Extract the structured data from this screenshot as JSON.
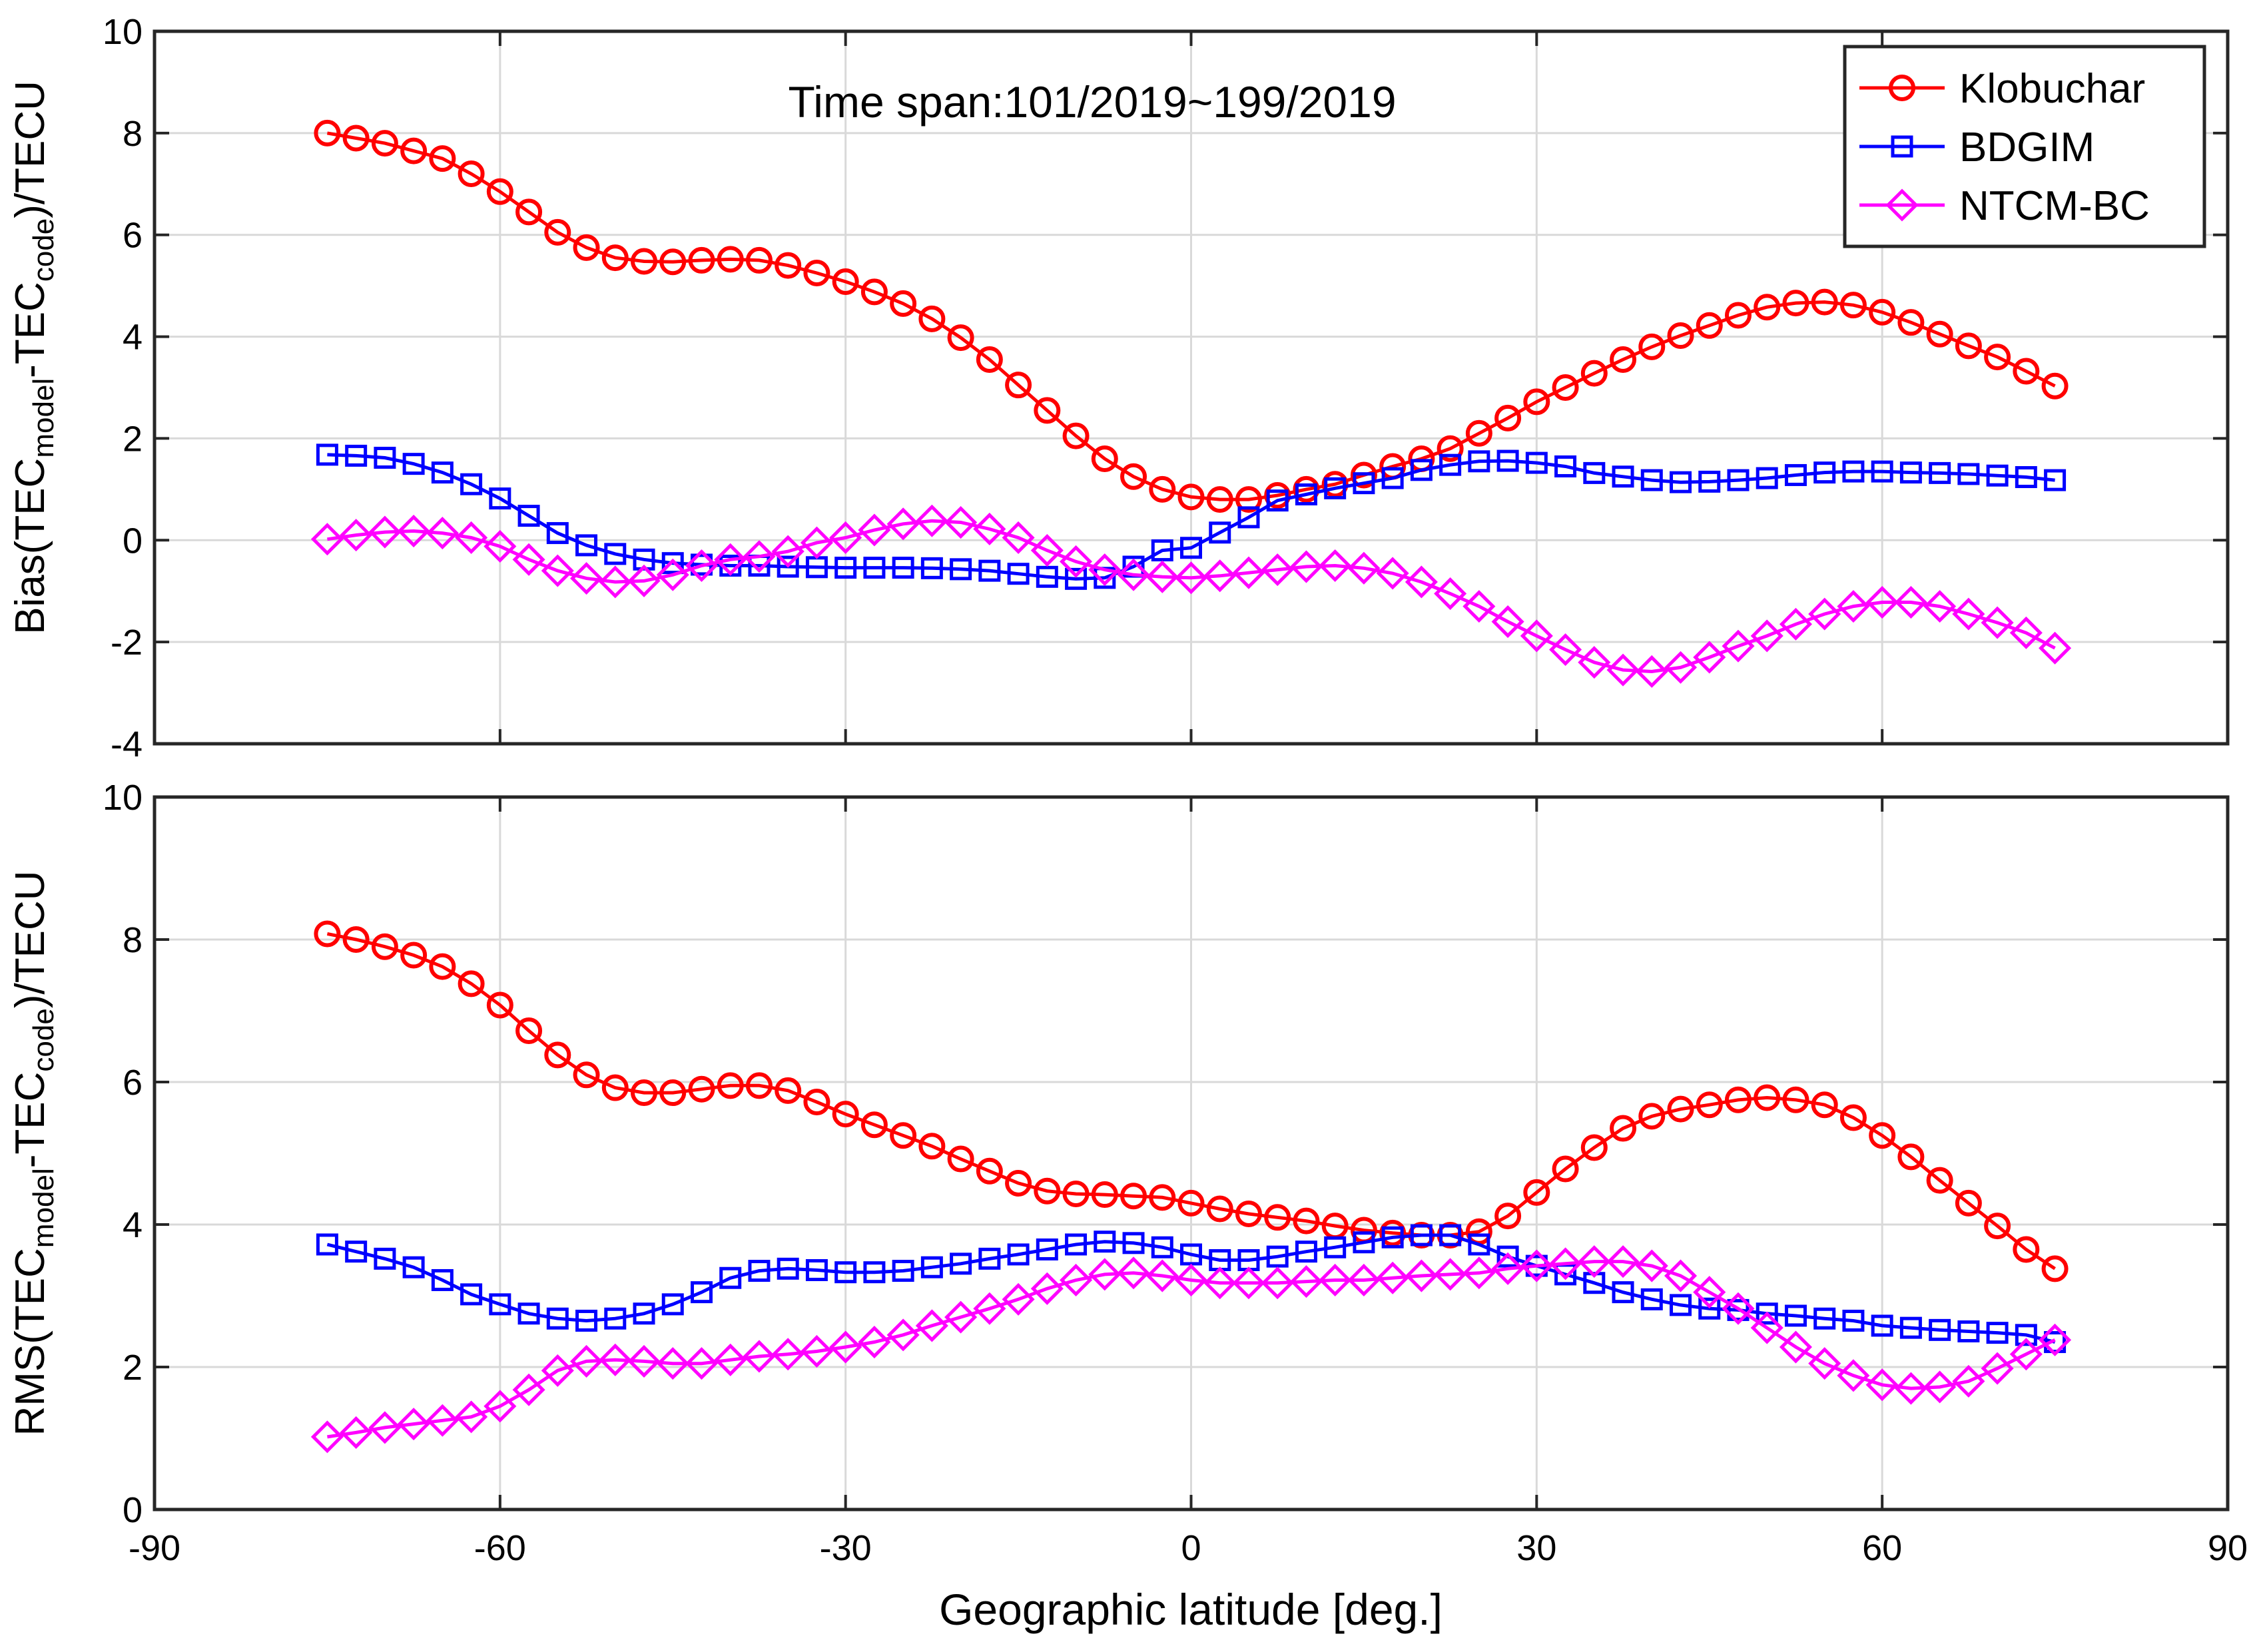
{
  "chart_data": [
    {
      "type": "line",
      "panel": "top",
      "ylabel_prefix": "Bias",
      "ylabel_parts": [
        "Bias(TEC",
        "model",
        "-TEC",
        "code",
        ")/TECU"
      ],
      "xlim": [
        -90,
        90
      ],
      "ylim": [
        -4,
        10
      ],
      "xticks": [
        -90,
        -60,
        -30,
        0,
        30,
        60,
        90
      ],
      "yticks": [
        -4,
        -2,
        0,
        2,
        4,
        6,
        8,
        10
      ],
      "grid": true,
      "annotation": "Time span:101/2019~199/2019",
      "x": [
        -75,
        -72.5,
        -70,
        -67.5,
        -65,
        -62.5,
        -60,
        -57.5,
        -55,
        -52.5,
        -50,
        -47.5,
        -45,
        -42.5,
        -40,
        -37.5,
        -35,
        -32.5,
        -30,
        -27.5,
        -25,
        -22.5,
        -20,
        -17.5,
        -15,
        -12.5,
        -10,
        -7.5,
        -5,
        -2.5,
        0,
        2.5,
        5,
        7.5,
        10,
        12.5,
        15,
        17.5,
        20,
        22.5,
        25,
        27.5,
        30,
        32.5,
        35,
        37.5,
        40,
        42.5,
        45,
        47.5,
        50,
        52.5,
        55,
        57.5,
        60,
        62.5,
        65,
        67.5,
        70,
        72.5,
        75
      ],
      "series": [
        {
          "name": "Klobuchar",
          "color": "#ff0000",
          "marker": "circle",
          "values": [
            8.0,
            7.9,
            7.8,
            7.65,
            7.5,
            7.2,
            6.85,
            6.45,
            6.05,
            5.75,
            5.55,
            5.48,
            5.47,
            5.5,
            5.52,
            5.5,
            5.4,
            5.25,
            5.08,
            4.88,
            4.65,
            4.35,
            3.98,
            3.55,
            3.05,
            2.55,
            2.05,
            1.6,
            1.25,
            1.0,
            0.85,
            0.8,
            0.8,
            0.88,
            1.0,
            1.1,
            1.28,
            1.45,
            1.6,
            1.8,
            2.1,
            2.4,
            2.72,
            3.0,
            3.28,
            3.55,
            3.8,
            4.02,
            4.22,
            4.42,
            4.58,
            4.66,
            4.68,
            4.62,
            4.48,
            4.28,
            4.05,
            3.82,
            3.6,
            3.32,
            3.03
          ]
        },
        {
          "name": "BDGIM",
          "color": "#0000ff",
          "marker": "square",
          "values": [
            1.68,
            1.66,
            1.62,
            1.5,
            1.33,
            1.1,
            0.82,
            0.48,
            0.14,
            -0.1,
            -0.27,
            -0.38,
            -0.45,
            -0.48,
            -0.5,
            -0.5,
            -0.52,
            -0.53,
            -0.54,
            -0.54,
            -0.54,
            -0.55,
            -0.57,
            -0.6,
            -0.66,
            -0.72,
            -0.76,
            -0.74,
            -0.52,
            -0.2,
            -0.15,
            0.15,
            0.45,
            0.78,
            0.9,
            1.02,
            1.12,
            1.22,
            1.38,
            1.48,
            1.55,
            1.56,
            1.52,
            1.45,
            1.32,
            1.25,
            1.18,
            1.14,
            1.15,
            1.18,
            1.22,
            1.28,
            1.33,
            1.35,
            1.35,
            1.33,
            1.32,
            1.3,
            1.27,
            1.24,
            1.18
          ]
        },
        {
          "name": "NTCM-BC",
          "color": "#ff00ff",
          "marker": "diamond",
          "values": [
            0.02,
            0.1,
            0.16,
            0.18,
            0.14,
            0.05,
            -0.12,
            -0.38,
            -0.6,
            -0.75,
            -0.82,
            -0.8,
            -0.68,
            -0.5,
            -0.38,
            -0.32,
            -0.22,
            -0.05,
            0.05,
            0.2,
            0.32,
            0.38,
            0.35,
            0.22,
            0.05,
            -0.2,
            -0.42,
            -0.58,
            -0.68,
            -0.72,
            -0.74,
            -0.7,
            -0.64,
            -0.58,
            -0.52,
            -0.5,
            -0.55,
            -0.65,
            -0.82,
            -1.05,
            -1.3,
            -1.6,
            -1.88,
            -2.15,
            -2.4,
            -2.55,
            -2.58,
            -2.5,
            -2.3,
            -2.08,
            -1.88,
            -1.65,
            -1.45,
            -1.3,
            -1.22,
            -1.22,
            -1.3,
            -1.45,
            -1.62,
            -1.82,
            -2.12
          ]
        }
      ]
    },
    {
      "type": "line",
      "panel": "bottom",
      "ylabel_parts": [
        "RMS(TEC",
        "model",
        "-TEC",
        "code",
        ")/TECU"
      ],
      "xlabel": "Geographic latitude [deg.]",
      "xlim": [
        -90,
        90
      ],
      "ylim": [
        0,
        10
      ],
      "xticks": [
        -90,
        -60,
        -30,
        0,
        30,
        60,
        90
      ],
      "yticks": [
        0,
        2,
        4,
        6,
        8,
        10
      ],
      "grid": true,
      "x": [
        -75,
        -72.5,
        -70,
        -67.5,
        -65,
        -62.5,
        -60,
        -57.5,
        -55,
        -52.5,
        -50,
        -47.5,
        -45,
        -42.5,
        -40,
        -37.5,
        -35,
        -32.5,
        -30,
        -27.5,
        -25,
        -22.5,
        -20,
        -17.5,
        -15,
        -12.5,
        -10,
        -7.5,
        -5,
        -2.5,
        0,
        2.5,
        5,
        7.5,
        10,
        12.5,
        15,
        17.5,
        20,
        22.5,
        25,
        27.5,
        30,
        32.5,
        35,
        37.5,
        40,
        42.5,
        45,
        47.5,
        50,
        52.5,
        55,
        57.5,
        60,
        62.5,
        65,
        67.5,
        70,
        72.5,
        75
      ],
      "series": [
        {
          "name": "Klobuchar",
          "color": "#ff0000",
          "marker": "circle",
          "values": [
            8.08,
            8.0,
            7.9,
            7.78,
            7.62,
            7.38,
            7.08,
            6.72,
            6.38,
            6.1,
            5.92,
            5.85,
            5.85,
            5.9,
            5.95,
            5.95,
            5.88,
            5.72,
            5.55,
            5.4,
            5.25,
            5.1,
            4.92,
            4.75,
            4.58,
            4.47,
            4.43,
            4.42,
            4.4,
            4.38,
            4.3,
            4.22,
            4.15,
            4.1,
            4.05,
            3.98,
            3.92,
            3.88,
            3.85,
            3.85,
            3.9,
            4.12,
            4.45,
            4.78,
            5.08,
            5.35,
            5.52,
            5.62,
            5.68,
            5.75,
            5.78,
            5.75,
            5.68,
            5.5,
            5.25,
            4.95,
            4.62,
            4.3,
            3.98,
            3.65,
            3.38
          ]
        },
        {
          "name": "BDGIM",
          "color": "#0000ff",
          "marker": "square",
          "values": [
            3.72,
            3.62,
            3.52,
            3.4,
            3.22,
            3.02,
            2.88,
            2.75,
            2.68,
            2.65,
            2.68,
            2.75,
            2.88,
            3.05,
            3.25,
            3.35,
            3.38,
            3.36,
            3.33,
            3.33,
            3.35,
            3.4,
            3.45,
            3.52,
            3.58,
            3.65,
            3.72,
            3.76,
            3.74,
            3.68,
            3.58,
            3.5,
            3.5,
            3.55,
            3.62,
            3.68,
            3.75,
            3.82,
            3.85,
            3.85,
            3.72,
            3.55,
            3.42,
            3.3,
            3.18,
            3.05,
            2.95,
            2.87,
            2.82,
            2.8,
            2.75,
            2.72,
            2.68,
            2.65,
            2.58,
            2.55,
            2.52,
            2.5,
            2.48,
            2.45,
            2.35
          ]
        },
        {
          "name": "NTCM-BC",
          "color": "#ff00ff",
          "marker": "diamond",
          "values": [
            1.02,
            1.08,
            1.15,
            1.2,
            1.25,
            1.3,
            1.45,
            1.68,
            1.95,
            2.08,
            2.1,
            2.08,
            2.05,
            2.05,
            2.1,
            2.15,
            2.18,
            2.22,
            2.28,
            2.35,
            2.45,
            2.58,
            2.7,
            2.82,
            2.95,
            3.1,
            3.22,
            3.3,
            3.32,
            3.28,
            3.22,
            3.18,
            3.18,
            3.18,
            3.2,
            3.22,
            3.22,
            3.25,
            3.28,
            3.3,
            3.32,
            3.38,
            3.42,
            3.45,
            3.48,
            3.48,
            3.42,
            3.28,
            3.05,
            2.82,
            2.55,
            2.28,
            2.05,
            1.88,
            1.75,
            1.7,
            1.72,
            1.8,
            1.98,
            2.18,
            2.38
          ]
        }
      ]
    }
  ],
  "legend": {
    "position": "top-right",
    "entries": [
      "Klobuchar",
      "BDGIM",
      "NTCM-BC"
    ]
  }
}
